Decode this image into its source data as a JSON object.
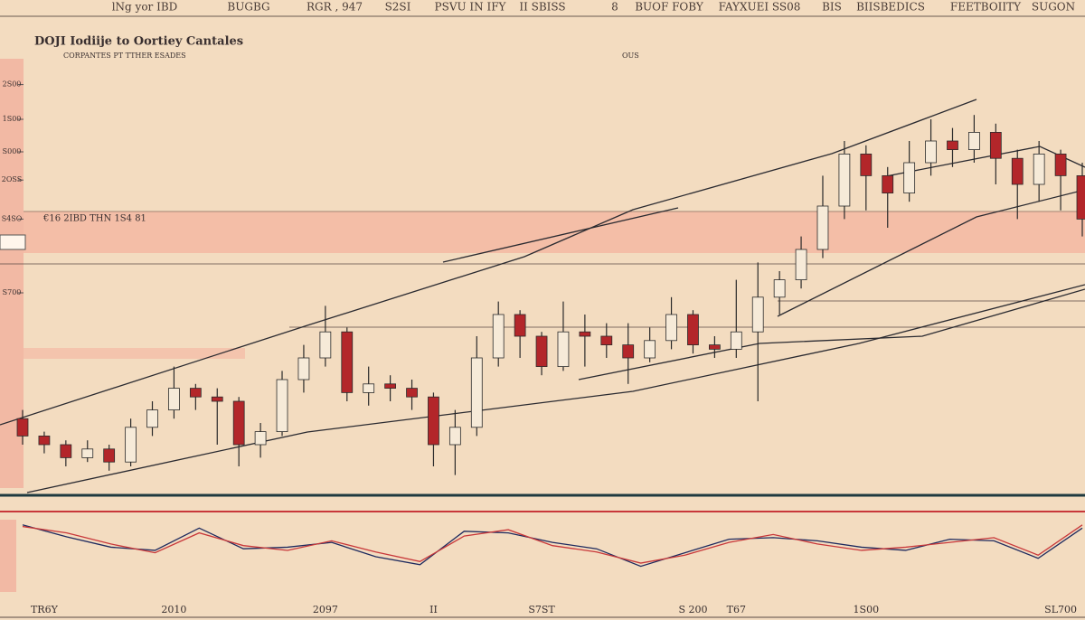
{
  "chart_data": {
    "type": "candlestick",
    "title": "DOJI Iodiije to Oortiey Cantales",
    "subtitle": "CORPANTES PT TTHER ESADES",
    "header": [
      "lNg yor IBD",
      "BUGBG",
      "RGR , 947",
      "S2SI",
      "PSVU IN IFY",
      "II SBISS",
      "8",
      "BUOF FOBY",
      "FAYXUEI SS08",
      "BIS",
      "BIISBEDICS",
      "FEETBOIITY",
      "SUGON"
    ],
    "annotations": [
      "OUS",
      "€16 2IBD THN 1S4 81"
    ],
    "categories": [
      null,
      "TR6Y",
      null,
      null,
      null,
      null,
      null,
      "2010",
      null,
      null,
      null,
      null,
      null,
      null,
      "2097",
      null,
      null,
      null,
      null,
      "II",
      null,
      null,
      null,
      null,
      "S7ST",
      null,
      null,
      null,
      null,
      null,
      null,
      "S 200",
      null,
      "T67",
      null,
      null,
      null,
      null,
      null,
      "1S00",
      null,
      null,
      null,
      null,
      null,
      null,
      null,
      null,
      "SL700",
      null
    ],
    "open": [
      16,
      12,
      10,
      7,
      9,
      6,
      14,
      18,
      23,
      21,
      20,
      10,
      13,
      25,
      30,
      36,
      22,
      24,
      23,
      21,
      10,
      14,
      30,
      40,
      35,
      28,
      36,
      35,
      33,
      30,
      34,
      40,
      33,
      32,
      36,
      44,
      48,
      55,
      65,
      77,
      72,
      68,
      75,
      80,
      78,
      82,
      76,
      70,
      77,
      72
    ],
    "high": [
      18,
      13,
      11,
      11,
      10,
      16,
      20,
      28,
      24,
      23,
      21,
      15,
      27,
      33,
      42,
      37,
      28,
      26,
      25,
      22,
      18,
      35,
      43,
      41,
      36,
      43,
      40,
      38,
      38,
      37,
      44,
      41,
      35,
      48,
      52,
      50,
      58,
      72,
      80,
      79,
      74,
      80,
      85,
      83,
      86,
      84,
      78,
      80,
      78,
      75
    ],
    "low": [
      10,
      8,
      5,
      6,
      4,
      5,
      12,
      16,
      18,
      10,
      5,
      7,
      12,
      22,
      28,
      20,
      19,
      20,
      18,
      5,
      3,
      12,
      28,
      30,
      26,
      27,
      28,
      30,
      24,
      29,
      32,
      31,
      30,
      30,
      20,
      40,
      46,
      53,
      62,
      64,
      60,
      66,
      72,
      74,
      75,
      70,
      62,
      66,
      64,
      58
    ],
    "close": [
      12,
      10,
      7,
      9,
      6,
      14,
      18,
      23,
      21,
      20,
      10,
      13,
      25,
      30,
      36,
      22,
      24,
      23,
      21,
      10,
      14,
      30,
      40,
      35,
      28,
      36,
      35,
      33,
      30,
      34,
      40,
      33,
      32,
      36,
      44,
      48,
      55,
      65,
      77,
      72,
      68,
      75,
      80,
      78,
      82,
      76,
      70,
      77,
      72,
      62
    ],
    "up_color": "#f6ead8",
    "down_color": "#b3262a",
    "ylim": [
      0,
      100
    ],
    "yticks": [
      {
        "value": 93,
        "label": "2S00"
      },
      {
        "value": 85,
        "label": "1S00"
      },
      {
        "value": 77.5,
        "label": "S000"
      },
      {
        "value": 71,
        "label": "2OSS"
      },
      {
        "value": 62,
        "label": "S4SO"
      },
      {
        "value": 45,
        "label": "S700"
      }
    ],
    "indicator": {
      "ylim": [
        0,
        100
      ],
      "series": [
        {
          "color": "#1e2a5e",
          "values": [
            90,
            75,
            62,
            58,
            86,
            60,
            62,
            68,
            50,
            40,
            82,
            80,
            68,
            60,
            38,
            55,
            72,
            74,
            70,
            62,
            58,
            72,
            70,
            48,
            86
          ]
        },
        {
          "color": "#c8383a",
          "values": [
            88,
            80,
            66,
            55,
            80,
            64,
            58,
            70,
            56,
            44,
            76,
            84,
            64,
            56,
            42,
            52,
            68,
            78,
            66,
            58,
            62,
            68,
            74,
            52,
            90
          ]
        }
      ]
    }
  }
}
